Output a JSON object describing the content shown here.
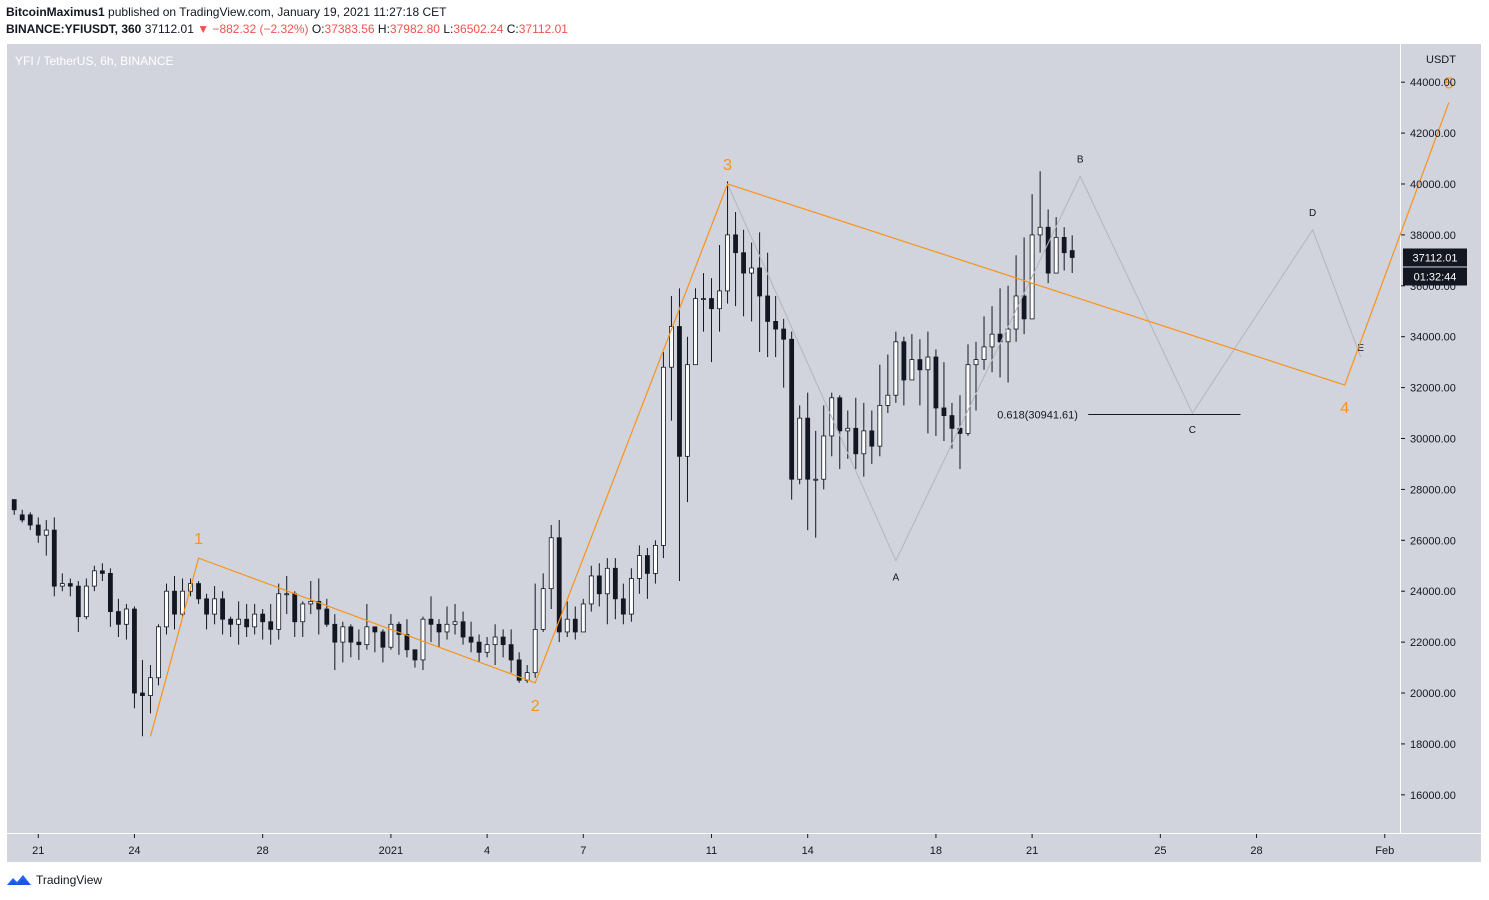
{
  "header": {
    "author": "BitcoinMaximus1",
    "published_text": "published on TradingView.com, January 19, 2021 11:27:18 CET",
    "symbol": "BINANCE:YFIUSDT, 360",
    "last": "37112.01",
    "change": "▼ −882.32 (−2.32%)",
    "o_label": "O:",
    "o_value": "37383.56",
    "h_label": "H:",
    "h_value": "37982.80",
    "l_label": "L:",
    "l_value": "36502.24",
    "c_label": "C:",
    "c_value": "37112.01"
  },
  "pane_title": "YFI / TetherUS, 6h, BINANCE",
  "footer": {
    "brand": "TradingView",
    "logo_icon": "tradingview-logo-icon"
  },
  "colors": {
    "plot_bg": "#d1d4dc",
    "up": "#ffffff",
    "down": "#131722",
    "wave": "#f7931a",
    "projection": "#b2b5be",
    "fib": "#131722",
    "red": "#ef5350"
  },
  "chart_data": {
    "type": "candlestick",
    "currency_label": "USDT",
    "ylim": [
      14500,
      45500
    ],
    "y_ticks": [
      "44000.00",
      "42000.00",
      "40000.00",
      "38000.00",
      "36000.00",
      "34000.00",
      "32000.00",
      "30000.00",
      "28000.00",
      "26000.00",
      "24000.00",
      "22000.00",
      "20000.00",
      "18000.00",
      "16000.00"
    ],
    "x_ticks": [
      {
        "label": "21",
        "t": 3
      },
      {
        "label": "24",
        "t": 15
      },
      {
        "label": "28",
        "t": 31
      },
      {
        "label": "2021",
        "t": 47
      },
      {
        "label": "4",
        "t": 59
      },
      {
        "label": "7",
        "t": 71
      },
      {
        "label": "11",
        "t": 87
      },
      {
        "label": "14",
        "t": 99
      },
      {
        "label": "18",
        "t": 115
      },
      {
        "label": "21",
        "t": 127
      },
      {
        "label": "25",
        "t": 143
      },
      {
        "label": "28",
        "t": 155
      },
      {
        "label": "Feb",
        "t": 171
      }
    ],
    "xlim": [
      -0.9,
      172.9
    ],
    "last_price_label": "37112.01",
    "countdown_label": "01:32:44",
    "candles": [
      [
        27600,
        27200,
        27400,
        27000
      ],
      [
        27000,
        26800,
        27200,
        26700
      ],
      [
        27000,
        26600,
        27100,
        26400
      ],
      [
        26600,
        26200,
        26900,
        25900
      ],
      [
        26200,
        26400,
        26800,
        25400
      ],
      [
        26400,
        24200,
        26900,
        23800
      ],
      [
        24200,
        24300,
        24700,
        24000
      ],
      [
        24300,
        24200,
        24500,
        23800
      ],
      [
        24200,
        23000,
        24400,
        22400
      ],
      [
        23000,
        24200,
        24500,
        22900
      ],
      [
        24200,
        24800,
        25000,
        24000
      ],
      [
        24800,
        24700,
        25100,
        24400
      ],
      [
        24700,
        23200,
        24900,
        22600
      ],
      [
        23200,
        22700,
        23700,
        22200
      ],
      [
        22700,
        23300,
        23500,
        22100
      ],
      [
        23300,
        20000,
        23400,
        19400
      ],
      [
        20000,
        19900,
        21300,
        18300
      ],
      [
        19900,
        20600,
        21100,
        19200
      ],
      [
        20600,
        22600,
        22700,
        20300
      ],
      [
        22600,
        24000,
        24300,
        22300
      ],
      [
        24000,
        23100,
        24600,
        22500
      ],
      [
        23100,
        24000,
        24500,
        23000
      ],
      [
        24000,
        24300,
        24500,
        23800
      ],
      [
        24300,
        23700,
        24400,
        23500
      ],
      [
        23700,
        23100,
        23900,
        22500
      ],
      [
        23100,
        23700,
        24200,
        22700
      ],
      [
        23700,
        22900,
        24000,
        22300
      ],
      [
        22900,
        22700,
        23000,
        22200
      ],
      [
        22700,
        22900,
        23600,
        21900
      ],
      [
        22900,
        22600,
        23500,
        22200
      ],
      [
        22600,
        23100,
        23500,
        22300
      ],
      [
        23100,
        22800,
        23300,
        22100
      ],
      [
        22800,
        22500,
        23500,
        21900
      ],
      [
        22500,
        23900,
        24300,
        22100
      ],
      [
        23900,
        23900,
        24600,
        23100
      ],
      [
        23900,
        22800,
        24000,
        22200
      ],
      [
        22800,
        23500,
        23600,
        22200
      ],
      [
        23500,
        23600,
        24400,
        23100
      ],
      [
        23600,
        23300,
        24500,
        22300
      ],
      [
        23300,
        22700,
        23700,
        22600
      ],
      [
        22700,
        22000,
        23100,
        20900
      ],
      [
        22000,
        22600,
        22800,
        21200
      ],
      [
        22600,
        22000,
        22700,
        21400
      ],
      [
        22000,
        21900,
        22500,
        21300
      ],
      [
        21900,
        22600,
        23500,
        21700
      ],
      [
        22600,
        22400,
        22600,
        21600
      ],
      [
        22400,
        21800,
        22500,
        21200
      ],
      [
        21800,
        22700,
        23100,
        21700
      ],
      [
        22700,
        22300,
        22800,
        21500
      ],
      [
        22300,
        21700,
        22900,
        21400
      ],
      [
        21700,
        21300,
        21700,
        21000
      ],
      [
        21300,
        22900,
        23000,
        20900
      ],
      [
        22900,
        22700,
        23800,
        22000
      ],
      [
        22700,
        22400,
        22900,
        21800
      ],
      [
        22400,
        22700,
        23400,
        22100
      ],
      [
        22700,
        22800,
        23500,
        22300
      ],
      [
        22800,
        22200,
        23200,
        21900
      ],
      [
        22200,
        22000,
        22800,
        21600
      ],
      [
        22000,
        21600,
        22300,
        21200
      ],
      [
        21600,
        21900,
        22200,
        21400
      ],
      [
        21900,
        22200,
        22700,
        21100
      ],
      [
        22200,
        21900,
        22500,
        21400
      ],
      [
        21900,
        21300,
        22500,
        20800
      ],
      [
        21300,
        20500,
        21600,
        20400
      ],
      [
        20500,
        20800,
        21100,
        20400
      ],
      [
        20800,
        22500,
        24300,
        20600
      ],
      [
        22500,
        24100,
        24700,
        22400
      ],
      [
        24100,
        26100,
        26600,
        23300
      ],
      [
        26100,
        22400,
        26800,
        22000
      ],
      [
        22400,
        22900,
        23600,
        22200
      ],
      [
        22900,
        22400,
        23400,
        22100
      ],
      [
        22400,
        23500,
        23700,
        22800
      ],
      [
        23500,
        24600,
        25000,
        23200
      ],
      [
        24600,
        23900,
        25100,
        23400
      ],
      [
        23900,
        24900,
        25300,
        22700
      ],
      [
        24900,
        23700,
        25300,
        22900
      ],
      [
        23700,
        23100,
        24300,
        22700
      ],
      [
        23100,
        24500,
        24900,
        22800
      ],
      [
        24500,
        25400,
        25800,
        23900
      ],
      [
        25400,
        24700,
        25700,
        23700
      ],
      [
        24700,
        25800,
        26000,
        24300
      ],
      [
        25800,
        32800,
        33400,
        25300
      ],
      [
        32800,
        34400,
        35600,
        30700
      ],
      [
        34400,
        29300,
        35900,
        24400
      ],
      [
        29300,
        32900,
        34000,
        27500
      ],
      [
        32900,
        35500,
        35900,
        34600
      ],
      [
        35500,
        35500,
        36500,
        34200
      ],
      [
        35500,
        35100,
        36300,
        33000
      ],
      [
        35100,
        35800,
        37600,
        34200
      ],
      [
        35800,
        38000,
        40100,
        35300
      ],
      [
        38000,
        37300,
        38900,
        35200
      ],
      [
        37300,
        36500,
        38200,
        34800
      ],
      [
        36500,
        36700,
        37700,
        34600
      ],
      [
        36700,
        35600,
        38100,
        33400
      ],
      [
        35600,
        34600,
        37300,
        33200
      ],
      [
        34600,
        34300,
        35600,
        33200
      ],
      [
        34300,
        33900,
        34700,
        32000
      ],
      [
        33900,
        28400,
        34200,
        27600
      ],
      [
        28400,
        30800,
        31300,
        28200
      ],
      [
        30800,
        28400,
        31800,
        26400
      ],
      [
        28400,
        28400,
        30300,
        26100
      ],
      [
        28400,
        30100,
        31300,
        28000
      ],
      [
        30100,
        31600,
        31800,
        29300
      ],
      [
        31600,
        30300,
        31700,
        28800
      ],
      [
        30300,
        30400,
        31100,
        29200
      ],
      [
        30400,
        29400,
        31600,
        28800
      ],
      [
        29400,
        30300,
        31400,
        28500
      ],
      [
        30300,
        29700,
        31100,
        29000
      ],
      [
        29700,
        31300,
        32900,
        29300
      ],
      [
        31300,
        31700,
        33300,
        31000
      ],
      [
        31700,
        33800,
        34200,
        31400
      ],
      [
        33800,
        32300,
        34000,
        31300
      ],
      [
        32300,
        33100,
        34100,
        32300
      ],
      [
        33100,
        32700,
        33900,
        31300
      ],
      [
        32700,
        33200,
        34200,
        30200
      ],
      [
        33200,
        31200,
        33500,
        30100
      ],
      [
        31200,
        30900,
        33000,
        29900
      ],
      [
        30900,
        30400,
        31400,
        29600
      ],
      [
        30400,
        30200,
        31700,
        28800
      ],
      [
        30200,
        32900,
        33700,
        30100
      ],
      [
        32900,
        33100,
        33800,
        31100
      ],
      [
        33100,
        33600,
        34800,
        32700
      ],
      [
        33600,
        34100,
        35200,
        32600
      ],
      [
        34100,
        33800,
        35900,
        32400
      ],
      [
        33800,
        34300,
        36000,
        32200
      ],
      [
        34300,
        35600,
        37200,
        33800
      ],
      [
        35600,
        34700,
        37900,
        34100
      ],
      [
        34700,
        38000,
        39600,
        36300
      ],
      [
        38000,
        38300,
        40500,
        37300
      ],
      [
        38300,
        36500,
        39000,
        36100
      ],
      [
        36500,
        37900,
        38700,
        36700
      ],
      [
        37900,
        37300,
        38300,
        36600
      ],
      [
        37383.56,
        37112.01,
        37982.8,
        36502.24
      ]
    ],
    "wave_points": [
      [
        17,
        18300
      ],
      [
        23,
        25300
      ],
      [
        65,
        20400
      ],
      [
        89,
        40000
      ],
      [
        166,
        32100
      ],
      [
        179,
        43200
      ]
    ],
    "wave_labels": [
      "1",
      "2",
      "3",
      "4",
      "5"
    ],
    "projection_points": [
      [
        89,
        40000
      ],
      [
        110,
        25200
      ],
      [
        133,
        40300
      ],
      [
        147,
        31000
      ],
      [
        162,
        38200
      ],
      [
        168,
        33200
      ]
    ],
    "projection_labels": [
      "A",
      "B",
      "C",
      "D",
      "E"
    ],
    "fib_label": "0.618(30941.61)",
    "fib_level": 30941.61,
    "fib_t_range": [
      134,
      153
    ]
  }
}
